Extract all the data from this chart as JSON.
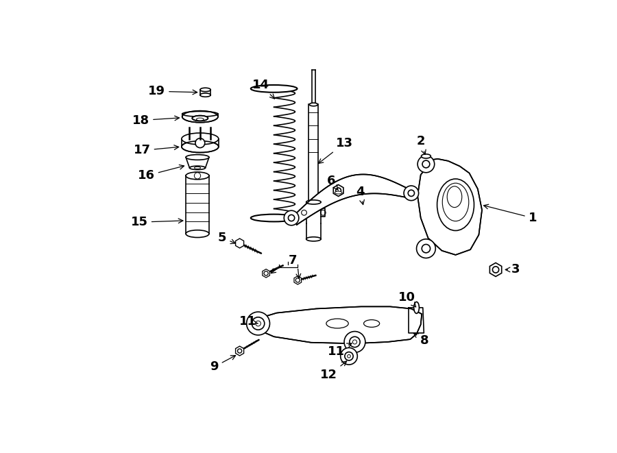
{
  "background_color": "#ffffff",
  "line_color": "#000000",
  "figsize": [
    9.0,
    6.61
  ],
  "dpi": 100
}
